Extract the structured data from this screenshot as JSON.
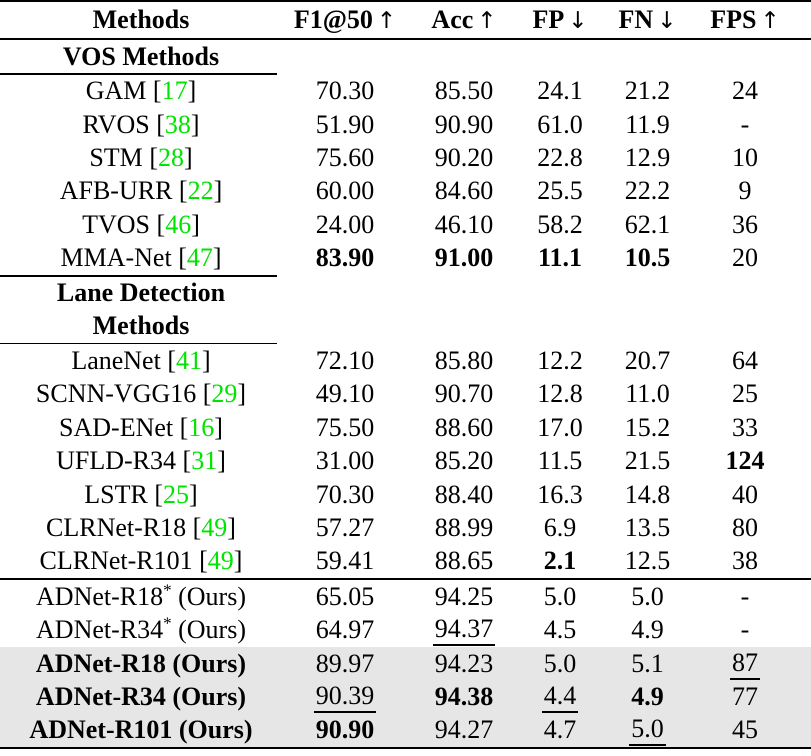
{
  "colors": {
    "citation": "#00e400",
    "row_highlight": "#e6e6e6",
    "text": "#000000",
    "background": "#ffffff"
  },
  "table": {
    "cite_open": "[",
    "cite_close": "]",
    "columns": [
      {
        "label": "Methods",
        "arrow": ""
      },
      {
        "label": "F1@50",
        "arrow": "↑"
      },
      {
        "label": "Acc",
        "arrow": "↑"
      },
      {
        "label": "FP",
        "arrow": "↓"
      },
      {
        "label": "FN",
        "arrow": "↓"
      },
      {
        "label": "FPS",
        "arrow": "↑"
      }
    ],
    "rows": [
      {
        "type": "section",
        "label": "VOS Methods",
        "rule_after": "partial-thin"
      },
      {
        "type": "data",
        "method": {
          "name": "GAM",
          "cite": "17"
        },
        "values": [
          {
            "t": "70.30"
          },
          {
            "t": "85.50"
          },
          {
            "t": "24.1"
          },
          {
            "t": "21.2"
          },
          {
            "t": "24"
          }
        ]
      },
      {
        "type": "data",
        "method": {
          "name": "RVOS",
          "cite": "38"
        },
        "values": [
          {
            "t": "51.90"
          },
          {
            "t": "90.90"
          },
          {
            "t": "61.0"
          },
          {
            "t": "11.9"
          },
          {
            "t": "-"
          }
        ]
      },
      {
        "type": "data",
        "method": {
          "name": "STM",
          "cite": "28"
        },
        "values": [
          {
            "t": "75.60"
          },
          {
            "t": "90.20"
          },
          {
            "t": "22.8"
          },
          {
            "t": "12.9"
          },
          {
            "t": "10"
          }
        ]
      },
      {
        "type": "data",
        "method": {
          "name": "AFB-URR",
          "cite": "22"
        },
        "values": [
          {
            "t": "60.00"
          },
          {
            "t": "84.60"
          },
          {
            "t": "25.5"
          },
          {
            "t": "22.2"
          },
          {
            "t": "9"
          }
        ]
      },
      {
        "type": "data",
        "method": {
          "name": "TVOS",
          "cite": "46"
        },
        "values": [
          {
            "t": "24.00"
          },
          {
            "t": "46.10"
          },
          {
            "t": "58.2"
          },
          {
            "t": "62.1"
          },
          {
            "t": "36"
          }
        ]
      },
      {
        "type": "data",
        "method": {
          "name": "MMA-Net",
          "cite": "47"
        },
        "rule_after": "partial-thick",
        "values": [
          {
            "t": "83.90",
            "b": true
          },
          {
            "t": "91.00",
            "b": true
          },
          {
            "t": "11.1",
            "b": true
          },
          {
            "t": "10.5",
            "b": true
          },
          {
            "t": "20"
          }
        ]
      },
      {
        "type": "section",
        "label": "Lane Detection"
      },
      {
        "type": "section",
        "label": "Methods",
        "rule_after": "partial-thin"
      },
      {
        "type": "data",
        "method": {
          "name": "LaneNet",
          "cite": "41"
        },
        "values": [
          {
            "t": "72.10"
          },
          {
            "t": "85.80"
          },
          {
            "t": "12.2"
          },
          {
            "t": "20.7"
          },
          {
            "t": "64"
          }
        ]
      },
      {
        "type": "data",
        "method": {
          "name": "SCNN-VGG16",
          "cite": "29"
        },
        "values": [
          {
            "t": "49.10"
          },
          {
            "t": "90.70"
          },
          {
            "t": "12.8"
          },
          {
            "t": "11.0"
          },
          {
            "t": "25"
          }
        ]
      },
      {
        "type": "data",
        "method": {
          "name": "SAD-ENet",
          "cite": "16"
        },
        "values": [
          {
            "t": "75.50"
          },
          {
            "t": "88.60"
          },
          {
            "t": "17.0"
          },
          {
            "t": "15.2"
          },
          {
            "t": "33"
          }
        ]
      },
      {
        "type": "data",
        "method": {
          "name": "UFLD-R34",
          "cite": "31"
        },
        "values": [
          {
            "t": "31.00"
          },
          {
            "t": "85.20"
          },
          {
            "t": "11.5"
          },
          {
            "t": "21.5"
          },
          {
            "t": "124",
            "b": true
          }
        ]
      },
      {
        "type": "data",
        "method": {
          "name": "LSTR",
          "cite": "25"
        },
        "values": [
          {
            "t": "70.30"
          },
          {
            "t": "88.40"
          },
          {
            "t": "16.3"
          },
          {
            "t": "14.8"
          },
          {
            "t": "40"
          }
        ]
      },
      {
        "type": "data",
        "method": {
          "name": "CLRNet-R18",
          "cite": "49"
        },
        "values": [
          {
            "t": "57.27"
          },
          {
            "t": "88.99"
          },
          {
            "t": "6.9"
          },
          {
            "t": "13.5"
          },
          {
            "t": "80"
          }
        ]
      },
      {
        "type": "data",
        "method": {
          "name": "CLRNet-R101",
          "cite": "49"
        },
        "rule_after": "full-thick",
        "values": [
          {
            "t": "59.41"
          },
          {
            "t": "88.65"
          },
          {
            "t": "2.1",
            "b": true
          },
          {
            "t": "12.5"
          },
          {
            "t": "38"
          }
        ]
      },
      {
        "type": "data",
        "method": {
          "name": "ADNet-R18",
          "star": "*",
          "suffix": " (Ours)"
        },
        "values": [
          {
            "t": "65.05"
          },
          {
            "t": "94.25"
          },
          {
            "t": "5.0"
          },
          {
            "t": "5.0"
          },
          {
            "t": "-"
          }
        ]
      },
      {
        "type": "data",
        "method": {
          "name": "ADNet-R34",
          "star": "*",
          "suffix": " (Ours)"
        },
        "values": [
          {
            "t": "64.97"
          },
          {
            "t": "94.37",
            "u": true
          },
          {
            "t": "4.5"
          },
          {
            "t": "4.9"
          },
          {
            "t": "-"
          }
        ]
      },
      {
        "type": "data",
        "shaded": true,
        "method": {
          "name": "ADNet-R18",
          "suffix": " (Ours)",
          "bold": true
        },
        "values": [
          {
            "t": "89.97"
          },
          {
            "t": "94.23"
          },
          {
            "t": "5.0"
          },
          {
            "t": "5.1"
          },
          {
            "t": "87",
            "u": true
          }
        ]
      },
      {
        "type": "data",
        "shaded": true,
        "method": {
          "name": "ADNet-R34",
          "suffix": " (Ours)",
          "bold": true
        },
        "values": [
          {
            "t": "90.39",
            "u": true
          },
          {
            "t": "94.38",
            "b": true
          },
          {
            "t": "4.4",
            "u": true
          },
          {
            "t": "4.9",
            "b": true
          },
          {
            "t": "77"
          }
        ]
      },
      {
        "type": "data",
        "shaded": true,
        "method": {
          "name": "ADNet-R101",
          "suffix": " (Ours)",
          "bold": true
        },
        "values": [
          {
            "t": "90.90",
            "b": true
          },
          {
            "t": "94.27"
          },
          {
            "t": "4.7"
          },
          {
            "t": "5.0",
            "u": true
          },
          {
            "t": "45"
          }
        ]
      }
    ]
  }
}
